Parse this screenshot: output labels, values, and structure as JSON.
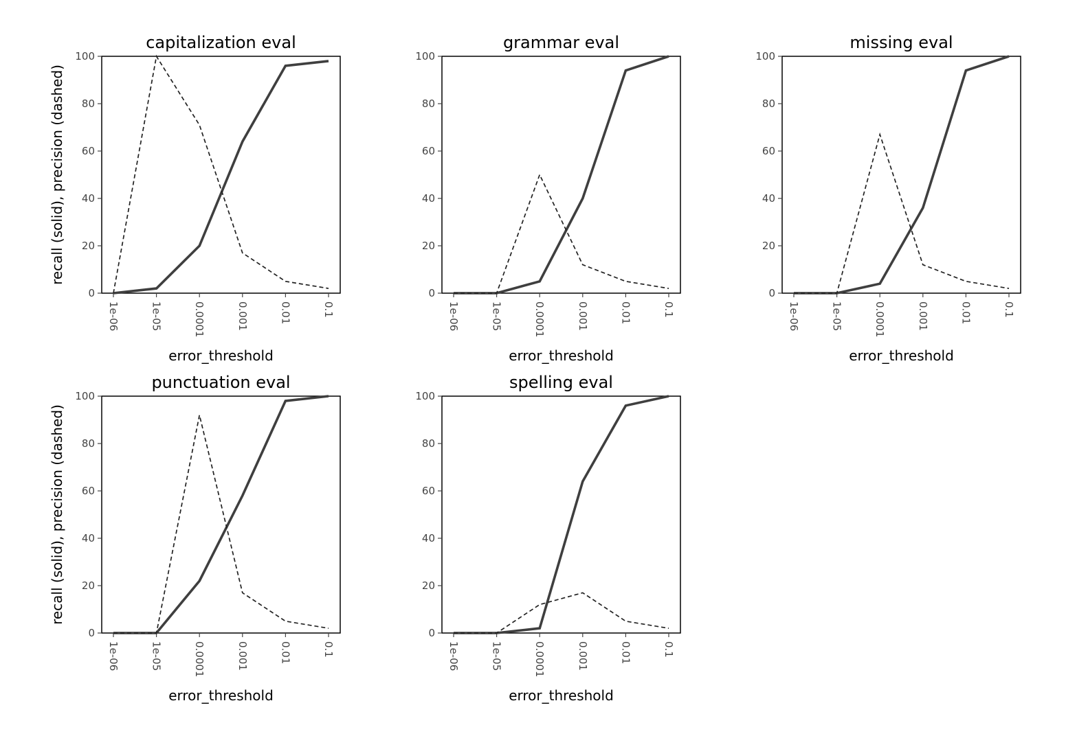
{
  "chart_data": [
    {
      "type": "line",
      "title": "capitalization eval",
      "xlabel": "error_threshold",
      "ylabel": "recall (solid), precision (dashed)",
      "x": [
        "1e-06",
        "1e-05",
        "0.0001",
        "0.001",
        "0.01",
        "0.1"
      ],
      "x_scale": "log",
      "ylim": [
        0,
        100
      ],
      "yticks": [
        "0",
        "20",
        "40",
        "60",
        "80",
        "100"
      ],
      "series": [
        {
          "style": "solid",
          "values": [
            0,
            2,
            20,
            64,
            96,
            98
          ]
        },
        {
          "style": "dashed",
          "values": [
            0,
            100,
            71,
            17,
            5,
            2
          ]
        }
      ]
    },
    {
      "type": "line",
      "title": "grammar eval",
      "xlabel": "error_threshold",
      "ylabel": "",
      "x": [
        "1e-06",
        "1e-05",
        "0.0001",
        "0.001",
        "0.01",
        "0.1"
      ],
      "x_scale": "log",
      "ylim": [
        0,
        100
      ],
      "yticks": [
        "0",
        "20",
        "40",
        "60",
        "80",
        "100"
      ],
      "series": [
        {
          "style": "solid",
          "values": [
            0,
            0,
            5,
            40,
            94,
            100
          ]
        },
        {
          "style": "dashed",
          "values": [
            0,
            0,
            50,
            12,
            5,
            2
          ]
        }
      ]
    },
    {
      "type": "line",
      "title": "missing eval",
      "xlabel": "error_threshold",
      "ylabel": "",
      "x": [
        "1e-06",
        "1e-05",
        "0.0001",
        "0.001",
        "0.01",
        "0.1"
      ],
      "x_scale": "log",
      "ylim": [
        0,
        100
      ],
      "yticks": [
        "0",
        "20",
        "40",
        "60",
        "80",
        "100"
      ],
      "series": [
        {
          "style": "solid",
          "values": [
            0,
            0,
            4,
            36,
            94,
            100
          ]
        },
        {
          "style": "dashed",
          "values": [
            0,
            0,
            67,
            12,
            5,
            2
          ]
        }
      ]
    },
    {
      "type": "line",
      "title": "punctuation eval",
      "xlabel": "error_threshold",
      "ylabel": "recall (solid), precision (dashed)",
      "x": [
        "1e-06",
        "1e-05",
        "0.0001",
        "0.001",
        "0.01",
        "0.1"
      ],
      "x_scale": "log",
      "ylim": [
        0,
        100
      ],
      "yticks": [
        "0",
        "20",
        "40",
        "60",
        "80",
        "100"
      ],
      "series": [
        {
          "style": "solid",
          "values": [
            0,
            0,
            22,
            58,
            98,
            100
          ]
        },
        {
          "style": "dashed",
          "values": [
            0,
            0,
            92,
            17,
            5,
            2
          ]
        }
      ]
    },
    {
      "type": "line",
      "title": "spelling eval",
      "xlabel": "error_threshold",
      "ylabel": "",
      "x": [
        "1e-06",
        "1e-05",
        "0.0001",
        "0.001",
        "0.01",
        "0.1"
      ],
      "x_scale": "log",
      "ylim": [
        0,
        100
      ],
      "yticks": [
        "0",
        "20",
        "40",
        "60",
        "80",
        "100"
      ],
      "series": [
        {
          "style": "solid",
          "values": [
            0,
            0,
            2,
            64,
            96,
            100
          ]
        },
        {
          "style": "dashed",
          "values": [
            0,
            0,
            12,
            17,
            5,
            2
          ]
        }
      ]
    }
  ]
}
